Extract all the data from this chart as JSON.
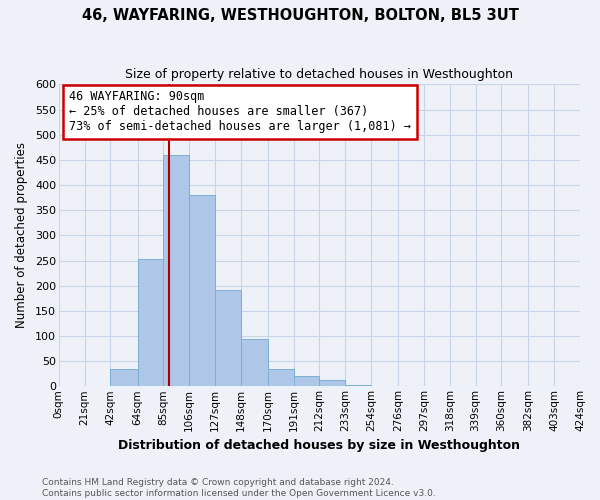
{
  "title": "46, WAYFARING, WESTHOUGHTON, BOLTON, BL5 3UT",
  "subtitle": "Size of property relative to detached houses in Westhoughton",
  "xlabel": "Distribution of detached houses by size in Westhoughton",
  "ylabel": "Number of detached properties",
  "bin_edges": [
    0,
    21,
    42,
    64,
    85,
    106,
    127,
    148,
    170,
    191,
    212,
    233,
    254,
    276,
    297,
    318,
    339,
    360,
    382,
    403,
    424
  ],
  "bin_labels": [
    "0sqm",
    "21sqm",
    "42sqm",
    "64sqm",
    "85sqm",
    "106sqm",
    "127sqm",
    "148sqm",
    "170sqm",
    "191sqm",
    "212sqm",
    "233sqm",
    "254sqm",
    "276sqm",
    "297sqm",
    "318sqm",
    "339sqm",
    "360sqm",
    "382sqm",
    "403sqm",
    "424sqm"
  ],
  "counts": [
    0,
    0,
    35,
    252,
    460,
    380,
    192,
    93,
    35,
    20,
    12,
    3,
    0,
    0,
    0,
    0,
    0,
    0,
    0,
    0
  ],
  "bar_color": "#aec6e8",
  "bar_edge_color": "#7bafd4",
  "vline_x": 90,
  "vline_color": "#aa0000",
  "annotation_line1": "46 WAYFARING: 90sqm",
  "annotation_line2": "← 25% of detached houses are smaller (367)",
  "annotation_line3": "73% of semi-detached houses are larger (1,081) →",
  "annotation_box_color": "white",
  "annotation_box_edge": "#cc0000",
  "ylim": [
    0,
    600
  ],
  "yticks": [
    0,
    50,
    100,
    150,
    200,
    250,
    300,
    350,
    400,
    450,
    500,
    550,
    600
  ],
  "footer_text": "Contains HM Land Registry data © Crown copyright and database right 2024.\nContains public sector information licensed under the Open Government Licence v3.0.",
  "grid_color": "#c8d4e8",
  "background_color": "#eef2f8"
}
